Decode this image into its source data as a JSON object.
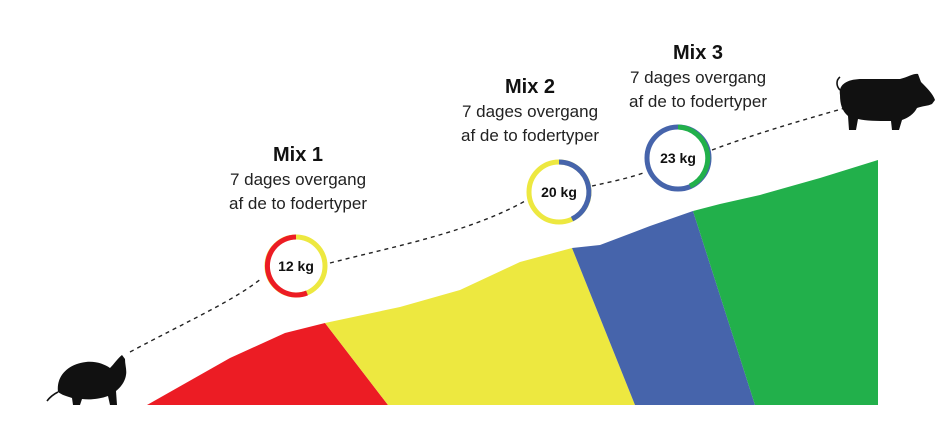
{
  "colors": {
    "red": "#ec1c24",
    "yellow": "#ede840",
    "blue": "#4664ab",
    "green": "#22b04b",
    "path": "#222222",
    "pig": "#111111"
  },
  "mixes": [
    {
      "title": "Mix 1",
      "line1": "7 dages overgang",
      "line2": "af de to fodertyper",
      "weight": "12 kg"
    },
    {
      "title": "Mix 2",
      "line1": "7 dages overgang",
      "line2": "af de to fodertyper",
      "weight": "20 kg"
    },
    {
      "title": "Mix 3",
      "line1": "7 dages overgang",
      "line2": "af de to fodertyper",
      "weight": "23 kg"
    }
  ],
  "icons": {
    "start": "piglet-icon",
    "end": "adult-pig-icon"
  }
}
